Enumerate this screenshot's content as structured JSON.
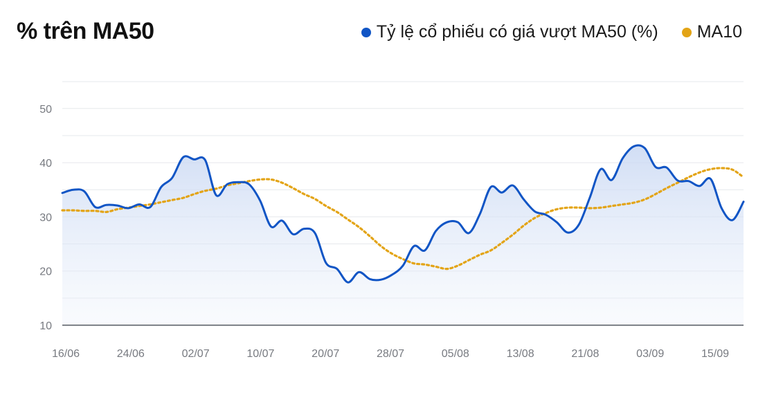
{
  "chart_data": {
    "type": "line",
    "title": "% trên MA50",
    "xlabel": "",
    "ylabel": "",
    "ylim": [
      10,
      55
    ],
    "yticks": [
      10,
      20,
      30,
      40,
      50
    ],
    "xticks": [
      "16/06",
      "24/06",
      "02/07",
      "10/07",
      "20/07",
      "28/07",
      "05/08",
      "13/08",
      "21/08",
      "03/09",
      "15/09"
    ],
    "grid": true,
    "legend_position": "top-right",
    "series": [
      {
        "name": "Tỷ lệ cổ phiếu có giá vượt MA50 (%)",
        "color": "#1155c5",
        "style": "solid",
        "area_fill": true,
        "values": [
          34.4,
          35.0,
          34.7,
          31.8,
          32.2,
          32.1,
          31.6,
          32.3,
          31.8,
          35.5,
          37.2,
          41.0,
          40.6,
          40.5,
          34.0,
          36.0,
          36.4,
          36.0,
          33.0,
          28.2,
          29.3,
          26.8,
          27.8,
          27.0,
          21.5,
          20.4,
          17.9,
          19.8,
          18.5,
          18.4,
          19.3,
          21.0,
          24.6,
          23.8,
          27.4,
          29.0,
          29.0,
          27.0,
          30.5,
          35.5,
          34.5,
          35.8,
          33.2,
          31.0,
          30.4,
          29.0,
          27.1,
          28.5,
          33.5,
          38.8,
          36.8,
          40.8,
          43.0,
          42.7,
          39.2,
          39.1,
          36.7,
          36.6,
          35.7,
          37.0,
          31.6,
          29.4,
          32.8
        ]
      },
      {
        "name": "MA10",
        "color": "#e3a416",
        "style": "dotted",
        "values": [
          31.2,
          31.2,
          31.1,
          31.1,
          30.9,
          31.4,
          31.7,
          32.0,
          32.3,
          32.7,
          33.1,
          33.5,
          34.2,
          34.8,
          35.2,
          35.8,
          36.2,
          36.6,
          36.9,
          36.9,
          36.3,
          35.3,
          34.2,
          33.3,
          32.0,
          30.9,
          29.5,
          28.1,
          26.4,
          24.6,
          23.2,
          22.2,
          21.4,
          21.2,
          20.8,
          20.4,
          21.0,
          22.0,
          23.0,
          23.8,
          25.2,
          26.7,
          28.4,
          29.8,
          30.7,
          31.4,
          31.7,
          31.7,
          31.6,
          31.7,
          32.0,
          32.3,
          32.6,
          33.2,
          34.2,
          35.3,
          36.3,
          37.3,
          38.2,
          38.8,
          39.0,
          38.7,
          37.3
        ]
      }
    ]
  }
}
